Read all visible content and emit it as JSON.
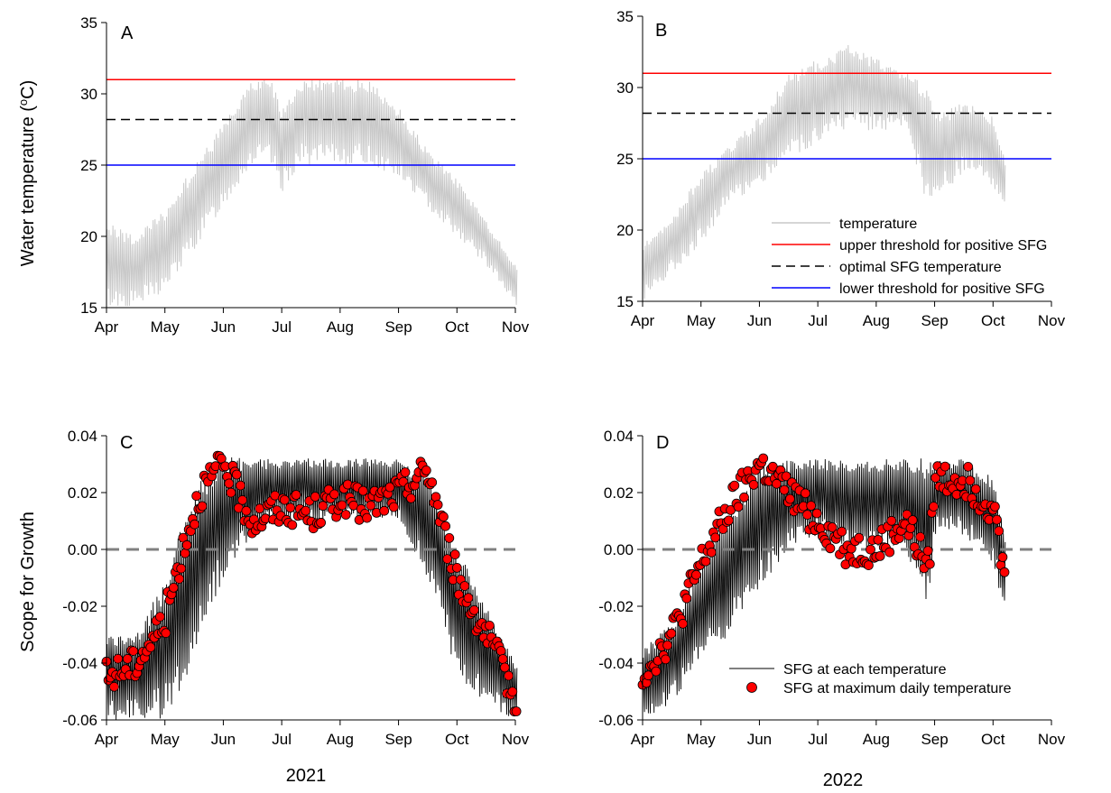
{
  "figure": {
    "ylabel_top": "Water temperature (°C)",
    "ylabel_top_main": "Water temperature (",
    "ylabel_top_sup": "o",
    "ylabel_top_end": "C)",
    "ylabel_bottom": "Scope for Growth",
    "year_left": "2021",
    "year_right": "2022"
  },
  "colors": {
    "temperature": "#c8c8c8",
    "upper_threshold": "#ff0000",
    "optimal": "#000000",
    "lower_threshold": "#0000ff",
    "sfg_line": "#000000",
    "sfg_point": "#ff0000",
    "zero_line": "#808080"
  },
  "legends": {
    "temperature_panel": [
      "temperature",
      "upper threshold for positive SFG",
      "optimal SFG temperature",
      "lower threshold for positive SFG"
    ],
    "sfg_panel": [
      "SFG at each temperature",
      "SFG at maximum daily temperature"
    ]
  },
  "chart_data": [
    {
      "panel": "A",
      "type": "line",
      "x_tick_labels": [
        "Apr",
        "May",
        "Jun",
        "Jul",
        "Aug",
        "Sep",
        "Oct",
        "Nov"
      ],
      "y_ticks": [
        "15",
        "20",
        "25",
        "30",
        "35"
      ],
      "ylim": [
        15,
        35
      ],
      "xlim_months": [
        0,
        7
      ],
      "data_end_month": 7.0,
      "hlines": {
        "upper_threshold": 31,
        "optimal": 28.2,
        "lower_threshold": 25
      },
      "temperature_daily": {
        "month": [
          0,
          0.5,
          1,
          1.5,
          2,
          2.5,
          2.8,
          3,
          3.3,
          3.5,
          4,
          4.5,
          5,
          5.5,
          6,
          6.5,
          7
        ],
        "min": [
          15,
          15,
          16,
          19,
          22,
          25,
          25,
          23,
          25,
          25,
          25,
          25,
          24,
          22,
          20,
          18,
          15
        ],
        "max": [
          21,
          20,
          22,
          25,
          28,
          31,
          31,
          29,
          31,
          31,
          31,
          31,
          29,
          26,
          24,
          21,
          18
        ]
      }
    },
    {
      "panel": "B",
      "type": "line",
      "x_tick_labels": [
        "Apr",
        "May",
        "Jun",
        "Jul",
        "Aug",
        "Sep",
        "Oct",
        "Nov"
      ],
      "y_ticks": [
        "15",
        "20",
        "25",
        "30",
        "35"
      ],
      "ylim": [
        15,
        35
      ],
      "xlim_months": [
        0,
        7
      ],
      "data_end_month": 6.2,
      "hlines": {
        "upper_threshold": 31,
        "optimal": 28.2,
        "lower_threshold": 25
      },
      "temperature_daily": {
        "month": [
          0,
          0.5,
          1,
          1.5,
          2,
          2.5,
          3,
          3.5,
          4,
          4.5,
          4.9,
          5,
          5.5,
          6,
          6.2
        ],
        "min": [
          15,
          17,
          19,
          22,
          23,
          25,
          26,
          27,
          27,
          27,
          21,
          22,
          24,
          23,
          21
        ],
        "max": [
          19,
          21,
          24,
          26,
          28,
          31,
          32,
          33,
          32,
          31,
          30,
          28,
          29,
          28,
          25
        ]
      }
    },
    {
      "panel": "C",
      "type": "line",
      "x_tick_labels": [
        "Apr",
        "May",
        "Jun",
        "Jul",
        "Aug",
        "Sep",
        "Oct",
        "Nov"
      ],
      "y_ticks": [
        "-0.06",
        "-0.04",
        "-0.02",
        "0.00",
        "0.02",
        "0.04"
      ],
      "ylim": [
        -0.06,
        0.04
      ],
      "xlim_months": [
        0,
        7
      ],
      "data_end_month": 7.0,
      "zero_line": 0,
      "sfg_daily": {
        "month": [
          0,
          0.5,
          1,
          1.3,
          1.6,
          2,
          2.5,
          3,
          3.5,
          4,
          4.5,
          5,
          5.5,
          5.8,
          6,
          6.5,
          7
        ],
        "min": [
          -0.06,
          -0.06,
          -0.06,
          -0.05,
          -0.03,
          -0.01,
          0.005,
          0.01,
          0.01,
          0.01,
          0.01,
          0.01,
          -0.01,
          -0.03,
          -0.045,
          -0.055,
          -0.06
        ],
        "max": [
          -0.03,
          -0.03,
          -0.01,
          0.01,
          0.025,
          0.033,
          0.032,
          0.032,
          0.032,
          0.032,
          0.032,
          0.032,
          0.025,
          0.01,
          0.0,
          -0.02,
          -0.04
        ]
      },
      "max_daily_points": {
        "month": [
          0,
          0.5,
          1,
          1.3,
          1.6,
          2,
          2.5,
          3,
          3.5,
          4,
          4.5,
          5,
          5.5,
          5.8,
          6,
          6.5,
          7
        ],
        "value": [
          -0.045,
          -0.04,
          -0.025,
          0.0,
          0.02,
          0.03,
          0.01,
          0.015,
          0.012,
          0.018,
          0.015,
          0.02,
          0.028,
          0.005,
          -0.01,
          -0.03,
          -0.052
        ]
      }
    },
    {
      "panel": "D",
      "type": "line",
      "x_tick_labels": [
        "Apr",
        "May",
        "Jun",
        "Jul",
        "Aug",
        "Sep",
        "Oct",
        "Nov"
      ],
      "y_ticks": [
        "-0.06",
        "-0.04",
        "-0.02",
        "0.00",
        "0.02",
        "0.04"
      ],
      "ylim": [
        -0.06,
        0.04
      ],
      "xlim_months": [
        0,
        7
      ],
      "data_end_month": 6.2,
      "zero_line": 0,
      "sfg_daily": {
        "month": [
          0,
          0.5,
          1,
          1.5,
          2,
          2.5,
          3,
          3.5,
          4,
          4.5,
          4.9,
          5,
          5.5,
          6,
          6.2
        ],
        "min": [
          -0.06,
          -0.055,
          -0.04,
          -0.03,
          -0.015,
          0.0,
          0.005,
          0.0,
          0.0,
          0.0,
          -0.02,
          0.005,
          0.005,
          -0.005,
          -0.023
        ],
        "max": [
          -0.035,
          -0.025,
          -0.005,
          0.015,
          0.03,
          0.032,
          0.032,
          0.032,
          0.032,
          0.032,
          0.032,
          0.032,
          0.032,
          0.025,
          0.005
        ]
      },
      "max_daily_points": {
        "month": [
          0,
          0.5,
          1,
          1.5,
          2,
          2.5,
          3,
          3.5,
          4,
          4.5,
          4.9,
          5,
          5.5,
          6,
          6.2
        ],
        "value": [
          -0.044,
          -0.03,
          -0.005,
          0.015,
          0.03,
          0.02,
          0.01,
          0.0,
          0.0,
          0.01,
          -0.007,
          0.025,
          0.025,
          0.015,
          -0.01
        ]
      }
    }
  ]
}
